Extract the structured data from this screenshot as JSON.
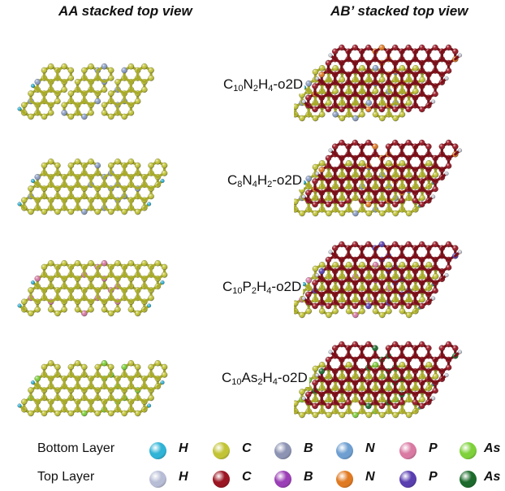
{
  "titles": {
    "aa": "AA stacked top view",
    "ab": "AB’ stacked top view"
  },
  "structures": [
    {
      "pre": "C",
      "s1": "10",
      "mid": "N",
      "s2": "2",
      "h": "H",
      "s3": "4",
      "suffix": "-o2D",
      "hetero": "N"
    },
    {
      "pre": "C",
      "s1": "8",
      "mid": "N",
      "s2": "4",
      "h": "H",
      "s3": "2",
      "suffix": "-o2D",
      "hetero": "N"
    },
    {
      "pre": "C",
      "s1": "10",
      "mid": "P",
      "s2": "2",
      "h": "H",
      "s3": "4",
      "suffix": "-o2D",
      "hetero": "P"
    },
    {
      "pre": "C",
      "s1": "10",
      "mid": "As",
      "s2": "2",
      "h": "H",
      "s3": "4",
      "suffix": "-o2D",
      "hetero": "As"
    }
  ],
  "legend": {
    "bottom_label": "Bottom Layer",
    "top_label": "Top Layer",
    "bottom": [
      {
        "element": "H",
        "color": "#2fb3d6"
      },
      {
        "element": "C",
        "color": "#c2c436"
      },
      {
        "element": "B",
        "color": "#8c93b3"
      },
      {
        "element": "N",
        "color": "#6f9fd1"
      },
      {
        "element": "P",
        "color": "#d97aa3"
      },
      {
        "element": "As",
        "color": "#7ed13a"
      }
    ],
    "top": [
      {
        "element": "H",
        "color": "#b8bdd6"
      },
      {
        "element": "C",
        "color": "#9b1522"
      },
      {
        "element": "B",
        "color": "#9a3fb5"
      },
      {
        "element": "N",
        "color": "#e07a22"
      },
      {
        "element": "P",
        "color": "#5a3fb0"
      },
      {
        "element": "As",
        "color": "#1d6b2c"
      }
    ]
  },
  "colors": {
    "bottom_c": "#c2c436",
    "bottom_h": "#2fb3d6",
    "bottom_n": "#8c9fc4",
    "bottom_p": "#d97aa3",
    "bottom_as": "#7ed13a",
    "top_c": "#9b1522",
    "top_h": "#c9cbd8",
    "top_n": "#e07a22",
    "top_p": "#5a3fb0",
    "top_as": "#1d6b2c"
  }
}
